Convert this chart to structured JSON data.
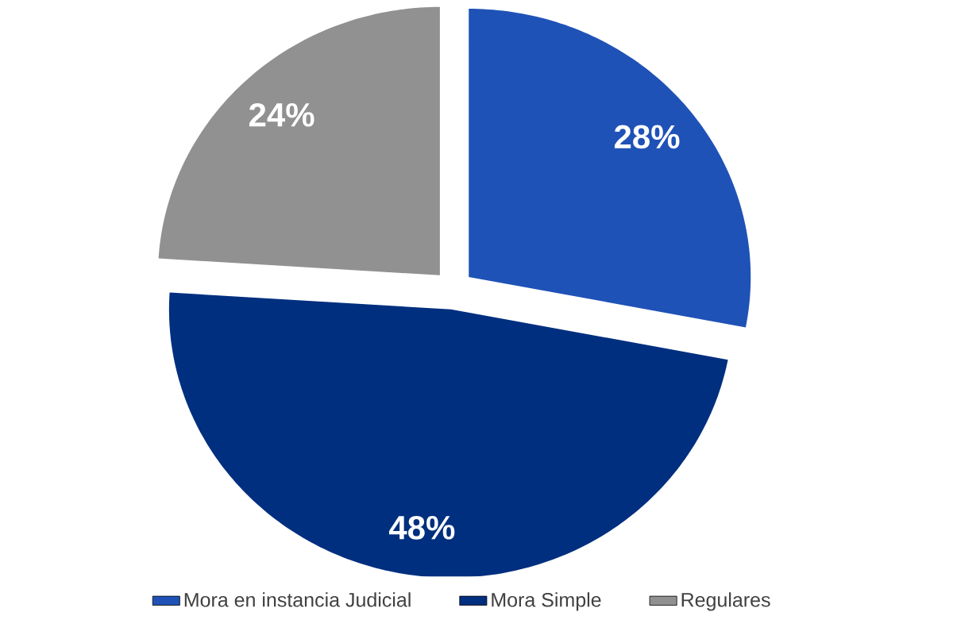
{
  "chart_data": {
    "type": "pie",
    "categories": [
      "Mora en instancia Judicial",
      "Mora Simple",
      "Regulares"
    ],
    "values": [
      28,
      48,
      24
    ],
    "colors": [
      "#1f52b7",
      "#002f7f",
      "#919191"
    ],
    "value_labels": [
      "28%",
      "48%",
      "24%"
    ],
    "legend": "bottom"
  }
}
